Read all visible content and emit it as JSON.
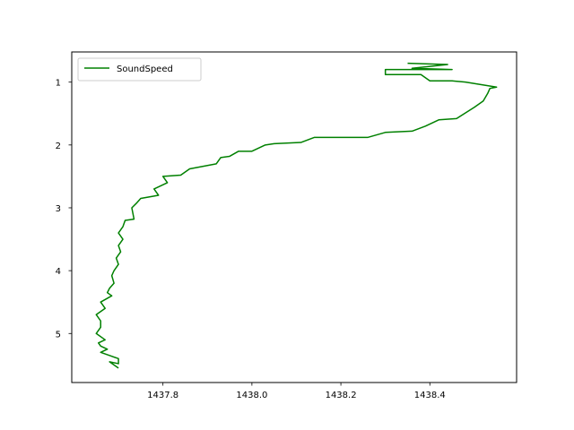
{
  "chart_data": {
    "type": "line",
    "title": "",
    "xlabel": "",
    "ylabel": "",
    "xlim": [
      1437.595,
      1438.595
    ],
    "ylim": [
      5.78,
      0.52
    ],
    "y_inverted": true,
    "x_ticks": [
      1437.8,
      1438.0,
      1438.2,
      1438.4
    ],
    "x_tick_labels": [
      "1437.8",
      "1438.0",
      "1438.2",
      "1438.4"
    ],
    "y_ticks": [
      1,
      2,
      3,
      4,
      5
    ],
    "y_tick_labels": [
      "1",
      "2",
      "3",
      "4",
      "5"
    ],
    "grid": false,
    "legend": {
      "position": "upper-left",
      "entries": [
        "SoundSpeed"
      ]
    },
    "series": [
      {
        "name": "SoundSpeed",
        "color": "#008000",
        "x": [
          1438.35,
          1438.44,
          1438.36,
          1438.45,
          1438.3,
          1438.3,
          1438.38,
          1438.4,
          1438.45,
          1438.48,
          1438.55,
          1438.535,
          1438.53,
          1438.52,
          1438.5,
          1438.46,
          1438.42,
          1438.39,
          1438.36,
          1438.3,
          1438.26,
          1438.14,
          1438.11,
          1438.05,
          1438.03,
          1438.0,
          1437.97,
          1437.95,
          1437.93,
          1437.92,
          1437.86,
          1437.84,
          1437.8,
          1437.81,
          1437.78,
          1437.79,
          1437.75,
          1437.74,
          1437.73,
          1437.735,
          1437.715,
          1437.71,
          1437.7,
          1437.71,
          1437.7,
          1437.705,
          1437.695,
          1437.7,
          1437.69,
          1437.685,
          1437.69,
          1437.68,
          1437.675,
          1437.685,
          1437.66,
          1437.67,
          1437.65,
          1437.66,
          1437.66,
          1437.65,
          1437.67,
          1437.655,
          1437.66,
          1437.675,
          1437.66,
          1437.68,
          1437.7,
          1437.7,
          1437.68,
          1437.69,
          1437.7
        ],
        "y": [
          0.7,
          0.72,
          0.78,
          0.8,
          0.8,
          0.88,
          0.88,
          0.98,
          0.98,
          1.0,
          1.08,
          1.1,
          1.18,
          1.3,
          1.4,
          1.58,
          1.6,
          1.7,
          1.78,
          1.8,
          1.88,
          1.88,
          1.96,
          1.98,
          2.0,
          2.1,
          2.1,
          2.18,
          2.2,
          2.3,
          2.38,
          2.48,
          2.5,
          2.6,
          2.7,
          2.8,
          2.85,
          2.93,
          3.0,
          3.18,
          3.2,
          3.3,
          3.4,
          3.5,
          3.6,
          3.7,
          3.8,
          3.9,
          4.0,
          4.08,
          4.2,
          4.28,
          4.35,
          4.4,
          4.5,
          4.6,
          4.7,
          4.8,
          4.9,
          5.0,
          5.1,
          5.15,
          5.2,
          5.25,
          5.3,
          5.35,
          5.4,
          5.48,
          5.45,
          5.5,
          5.55
        ]
      }
    ]
  }
}
